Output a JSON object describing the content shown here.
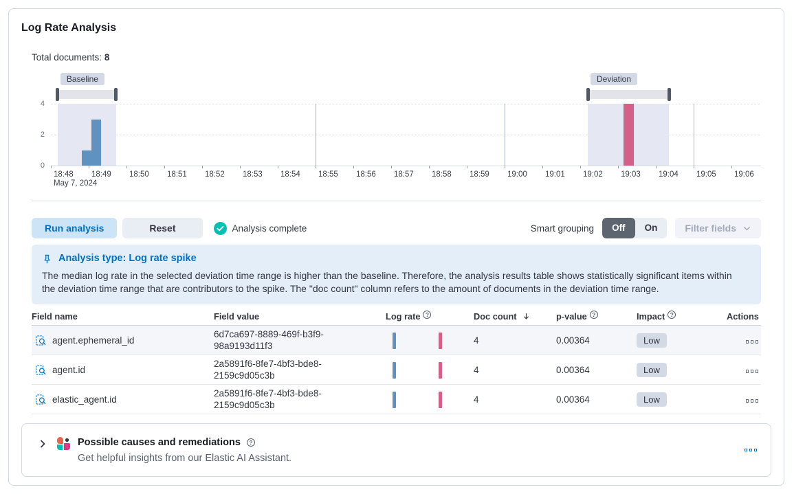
{
  "header": {
    "title": "Log Rate Analysis"
  },
  "summary": {
    "total_documents_label": "Total documents:",
    "total_documents_value": "8"
  },
  "chart_data": {
    "type": "bar",
    "title": "Document count histogram with baseline and deviation time range selections",
    "x_axis": {
      "tick_labels": [
        "18:48",
        "18:49",
        "18:50",
        "18:51",
        "18:52",
        "18:53",
        "18:54",
        "18:55",
        "18:56",
        "18:57",
        "18:58",
        "18:59",
        "19:00",
        "19:01",
        "19:02",
        "19:03",
        "19:04",
        "19:05",
        "19:06"
      ],
      "date_label": "May 7, 2024",
      "major_gridlines_at": [
        "18:55",
        "19:00",
        "19:05"
      ]
    },
    "y_axis": {
      "ticks": [
        0,
        2,
        4
      ],
      "range": [
        0,
        4
      ]
    },
    "series": [
      {
        "name": "baseline",
        "color": "#6092C0",
        "bars": [
          {
            "x_minute_offset": 0.82,
            "width_minutes": 0.25,
            "value": 1
          },
          {
            "x_minute_offset": 1.07,
            "width_minutes": 0.25,
            "value": 3
          }
        ]
      },
      {
        "name": "deviation",
        "color": "#D36086",
        "bars": [
          {
            "x_minute_offset": 15.15,
            "width_minutes": 0.26,
            "value": 4
          }
        ]
      }
    ],
    "brushes": [
      {
        "label": "Baseline",
        "start_minute": 0.18,
        "end_minute": 1.72
      },
      {
        "label": "Deviation",
        "start_minute": 14.2,
        "end_minute": 16.35
      }
    ]
  },
  "controls": {
    "run_analysis_label": "Run analysis",
    "reset_label": "Reset",
    "status_label": "Analysis complete",
    "smart_grouping_label": "Smart grouping",
    "toggle_off_label": "Off",
    "toggle_on_label": "On",
    "toggle_selected": "Off",
    "filter_fields_label": "Filter fields"
  },
  "callout": {
    "title": "Analysis type: Log rate spike",
    "body": "The median log rate in the selected deviation time range is higher than the baseline. Therefore, the analysis results table shows statistically significant items within the deviation time range that are contributors to the spike. The \"doc count\" column refers to the amount of documents in the deviation time range."
  },
  "table": {
    "columns": [
      {
        "key": "field_name",
        "label": "Field name",
        "info": false,
        "sort": null
      },
      {
        "key": "field_value",
        "label": "Field value",
        "info": false,
        "sort": null
      },
      {
        "key": "log_rate",
        "label": "Log rate",
        "info": true,
        "sort": null
      },
      {
        "key": "doc_count",
        "label": "Doc count",
        "info": false,
        "sort": "desc"
      },
      {
        "key": "p_value",
        "label": "p-value",
        "info": true,
        "sort": null
      },
      {
        "key": "impact",
        "label": "Impact",
        "info": true,
        "sort": null
      },
      {
        "key": "actions",
        "label": "Actions",
        "info": false,
        "sort": null
      }
    ],
    "rows": [
      {
        "field_name": "agent.ephemeral_id",
        "field_value": "6d7ca697-8889-469f-b3f9-98a9193d11f3",
        "doc_count": "4",
        "p_value": "0.00364",
        "impact": "Low"
      },
      {
        "field_name": "agent.id",
        "field_value": "2a5891f6-8fe7-4bf3-bde8-2159c9d05c3b",
        "doc_count": "4",
        "p_value": "0.00364",
        "impact": "Low"
      },
      {
        "field_name": "elastic_agent.id",
        "field_value": "2a5891f6-8fe7-4bf3-bde8-2159c9d05c3b",
        "doc_count": "4",
        "p_value": "0.00364",
        "impact": "Low"
      }
    ]
  },
  "ai_panel": {
    "title": "Possible causes and remediations",
    "subtitle": "Get helpful insights from our Elastic AI Assistant."
  },
  "colors": {
    "baseline_bar": "#6092C0",
    "deviation_bar": "#D36086",
    "brush_region": "#e5e8f2",
    "brush_handle": "#515866",
    "badge_background": "#d3dae6",
    "primary_blue": "#0071c2",
    "success_teal": "#00BFB3",
    "callout_background": "#e4eef9",
    "ai_logo_orange": "#E8654F",
    "ai_logo_teal": "#00BFB3",
    "ai_logo_pink": "#E0368C",
    "ai_logo_dark": "#343741"
  }
}
